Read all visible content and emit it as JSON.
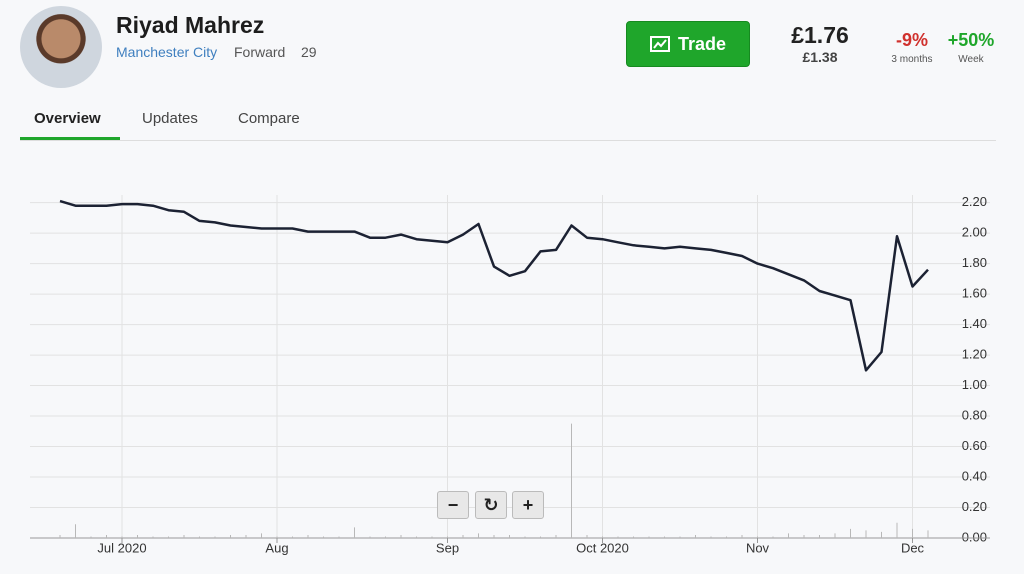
{
  "header": {
    "name": "Riyad Mahrez",
    "club": "Manchester City",
    "position": "Forward",
    "age": "29",
    "button": "Trade",
    "price": "£1.76",
    "prev_price": "£1.38",
    "changes": [
      {
        "value": "-9%",
        "label": "3 months"
      },
      {
        "value": "+50%",
        "label": "Week"
      }
    ]
  },
  "tabs": [
    "Overview",
    "Updates",
    "Compare"
  ],
  "chart_data": {
    "type": "line",
    "color": "#1c2233",
    "categories": [
      null,
      null,
      null,
      null,
      "Jul 2020",
      null,
      null,
      null,
      null,
      null,
      null,
      null,
      null,
      null,
      "Aug",
      null,
      null,
      null,
      null,
      null,
      null,
      null,
      null,
      null,
      null,
      "Sep",
      null,
      null,
      null,
      null,
      null,
      null,
      null,
      null,
      null,
      "Oct 2020",
      null,
      null,
      null,
      null,
      null,
      null,
      null,
      null,
      null,
      "Nov",
      null,
      null,
      null,
      null,
      null,
      null,
      null,
      null,
      null,
      "Dec",
      null
    ],
    "values": [
      2.21,
      2.18,
      2.18,
      2.18,
      2.19,
      2.19,
      2.18,
      2.15,
      2.14,
      2.08,
      2.07,
      2.05,
      2.04,
      2.03,
      2.03,
      2.03,
      2.01,
      2.01,
      2.01,
      2.01,
      1.97,
      1.97,
      1.99,
      1.96,
      1.95,
      1.94,
      1.99,
      2.06,
      1.78,
      1.72,
      1.75,
      1.88,
      1.89,
      2.05,
      1.97,
      1.96,
      1.94,
      1.92,
      1.91,
      1.9,
      1.91,
      1.9,
      1.89,
      1.87,
      1.85,
      1.8,
      1.77,
      1.73,
      1.69,
      1.62,
      1.59,
      1.56,
      1.1,
      1.22,
      1.98,
      1.65,
      1.76
    ],
    "volume": [
      0.02,
      0.09,
      0.01,
      0.02,
      0.01,
      0.02,
      0.01,
      0.01,
      0.02,
      0.01,
      0.01,
      0.02,
      0.02,
      0.03,
      0.01,
      0.01,
      0.02,
      0.01,
      0.01,
      0.07,
      0.01,
      0.01,
      0.02,
      0.01,
      0.01,
      0.01,
      0.02,
      0.03,
      0.02,
      0.02,
      0.01,
      0.01,
      0.02,
      0.75,
      0.02,
      0.01,
      0.01,
      0.01,
      0.01,
      0.01,
      0.01,
      0.02,
      0.01,
      0.01,
      0.02,
      0.01,
      0.01,
      0.03,
      0.02,
      0.02,
      0.03,
      0.06,
      0.05,
      0.04,
      0.1,
      0.06,
      0.05
    ],
    "ylim": [
      0,
      2.25
    ],
    "yticks": [
      {
        "value": 0,
        "label": "0.00"
      },
      {
        "value": 0.2,
        "label": "0.20"
      },
      {
        "value": 0.4,
        "label": "0.40"
      },
      {
        "value": 0.6,
        "label": "0.60"
      },
      {
        "value": 0.8,
        "label": "0.80"
      },
      {
        "value": 1,
        "label": "1.00"
      },
      {
        "value": 1.2,
        "label": "1.20"
      },
      {
        "value": 1.4,
        "label": "1.40"
      },
      {
        "value": 1.6,
        "label": "1.60"
      },
      {
        "value": 1.8,
        "label": "1.80"
      },
      {
        "value": 2,
        "label": "2.00"
      },
      {
        "value": 2.2,
        "label": "2.20"
      }
    ],
    "grid": true
  }
}
